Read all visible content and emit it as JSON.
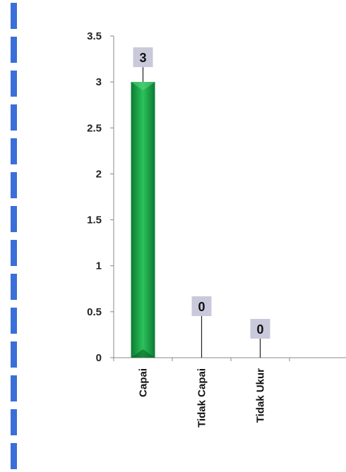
{
  "chart_data": {
    "type": "bar",
    "categories": [
      "Capai",
      "Tidak Capai",
      "Tidak Ukur"
    ],
    "values": [
      3,
      0,
      0
    ],
    "data_labels": [
      "3",
      "0",
      "0"
    ],
    "y_ticks": [
      "0",
      "0.5",
      "1",
      "1.5",
      "2",
      "2.5",
      "3",
      "3.5"
    ],
    "ylim": [
      0,
      3.5
    ],
    "grid": false,
    "bar_color": "#1aa34a",
    "data_label_bg": "#c9c9db",
    "left_strip_color": "#3a6fd8"
  }
}
